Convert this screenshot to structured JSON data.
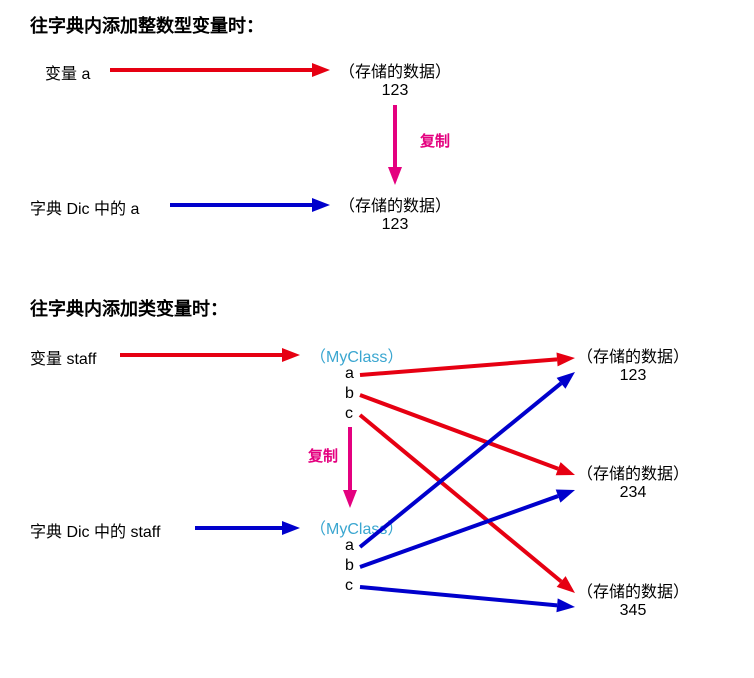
{
  "colors": {
    "red": "#e60012",
    "blue": "#0000cc",
    "magenta": "#e4007f",
    "black": "#000000",
    "teal": "#3aa6d0",
    "background": "#ffffff"
  },
  "arrow_stroke_width": 4,
  "arrowhead_length": 18,
  "arrowhead_width": 14,
  "copy_label_fontsize": 15,
  "section1": {
    "heading": "往字典内添加整数型变量时：",
    "var_label": "变量 a",
    "dic_label": "字典 Dic 中的 a",
    "stored1": "（存储的数据）",
    "stored1_val": "123",
    "stored2": "（存储的数据）",
    "stored2_val": "123",
    "copy_label": "复制"
  },
  "section2": {
    "heading": "往字典内添加类变量时：",
    "var_label": "变量 staff",
    "dic_label": "字典 Dic 中的 staff",
    "myclass1": "（MyClass）",
    "myclass2": "（MyClass）",
    "field_a": "a",
    "field_b": "b",
    "field_c": "c",
    "stored1": "（存储的数据）",
    "stored1_val": "123",
    "stored2": "（存储的数据）",
    "stored2_val": "234",
    "stored3": "（存储的数据）",
    "stored3_val": "345",
    "copy_label": "复制"
  }
}
